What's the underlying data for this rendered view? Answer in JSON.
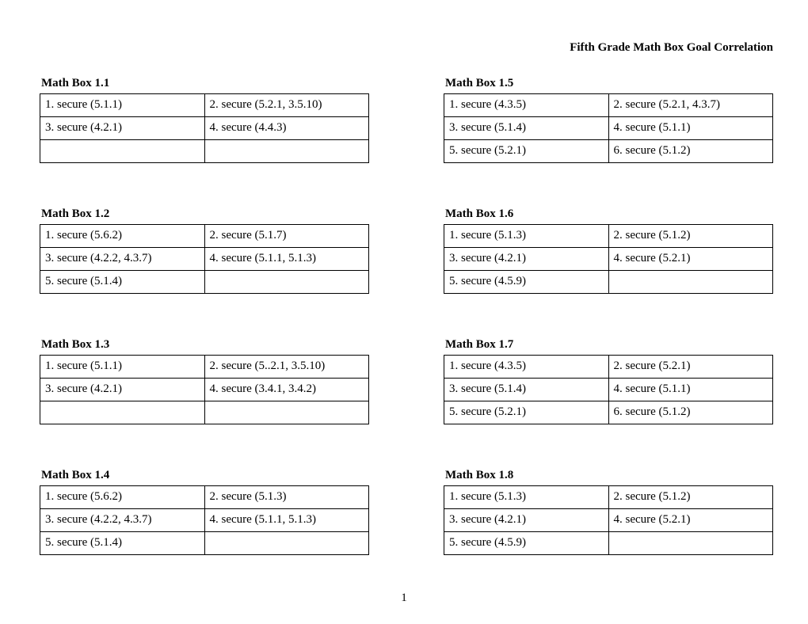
{
  "document": {
    "title": "Fifth Grade Math Box Goal Correlation",
    "page_number": "1",
    "font_family": "Times New Roman",
    "title_fontsize": 15,
    "cell_fontsize": 15,
    "border_color": "#000000",
    "background_color": "#ffffff"
  },
  "left": [
    {
      "title": "Math Box 1.1",
      "rows": [
        [
          "1. secure (5.1.1)",
          "2. secure (5.2.1, 3.5.10)"
        ],
        [
          "3. secure (4.2.1)",
          "4. secure (4.4.3)"
        ],
        [
          "",
          ""
        ]
      ]
    },
    {
      "title": "Math Box 1.2",
      "rows": [
        [
          "1. secure (5.6.2)",
          "2. secure (5.1.7)"
        ],
        [
          "3. secure (4.2.2, 4.3.7)",
          "4. secure (5.1.1, 5.1.3)"
        ],
        [
          "5. secure (5.1.4)",
          ""
        ]
      ]
    },
    {
      "title": "Math Box 1.3",
      "rows": [
        [
          "1. secure (5.1.1)",
          "2. secure (5..2.1, 3.5.10)"
        ],
        [
          "3. secure (4.2.1)",
          "4. secure (3.4.1, 3.4.2)"
        ],
        [
          "",
          ""
        ]
      ]
    },
    {
      "title": "Math Box 1.4",
      "rows": [
        [
          "1. secure (5.6.2)",
          "2. secure (5.1.3)"
        ],
        [
          "3. secure (4.2.2, 4.3.7)",
          "4. secure (5.1.1, 5.1.3)"
        ],
        [
          "5. secure (5.1.4)",
          ""
        ]
      ]
    }
  ],
  "right": [
    {
      "title": "Math Box 1.5",
      "rows": [
        [
          "1. secure (4.3.5)",
          "2. secure (5.2.1, 4.3.7)"
        ],
        [
          "3. secure (5.1.4)",
          "4. secure (5.1.1)"
        ],
        [
          "5. secure (5.2.1)",
          "6. secure (5.1.2)"
        ]
      ]
    },
    {
      "title": "Math Box 1.6",
      "rows": [
        [
          "1. secure (5.1.3)",
          "2. secure (5.1.2)"
        ],
        [
          "3. secure (4.2.1)",
          "4. secure (5.2.1)"
        ],
        [
          "5. secure (4.5.9)",
          ""
        ]
      ]
    },
    {
      "title": "Math Box 1.7",
      "rows": [
        [
          "1. secure (4.3.5)",
          "2. secure (5.2.1)"
        ],
        [
          "3. secure (5.1.4)",
          "4. secure (5.1.1)"
        ],
        [
          "5. secure (5.2.1)",
          "6. secure (5.1.2)"
        ]
      ]
    },
    {
      "title": "Math Box 1.8",
      "rows": [
        [
          "1. secure (5.1.3)",
          "2. secure (5.1.2)"
        ],
        [
          "3. secure (4.2.1)",
          "4. secure (5.2.1)"
        ],
        [
          "5. secure (4.5.9)",
          ""
        ]
      ]
    }
  ]
}
